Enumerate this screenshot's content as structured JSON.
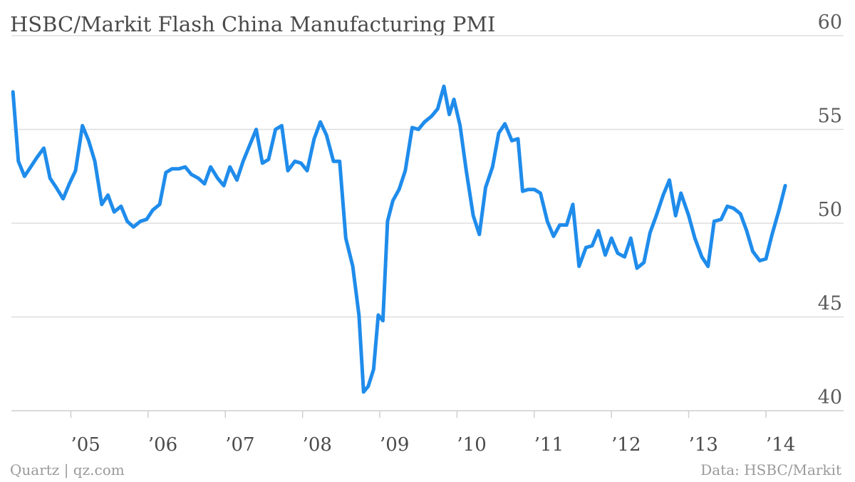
{
  "chart_data": {
    "type": "line",
    "title": "HSBC/Markit Flash China Manufacturing PMI",
    "xlabel": "",
    "ylabel": "",
    "ylim": [
      40,
      60
    ],
    "yticks": [
      40,
      45,
      50,
      55,
      60
    ],
    "xticks": [
      {
        "x": 2005,
        "label": "’05"
      },
      {
        "x": 2006,
        "label": "’06"
      },
      {
        "x": 2007,
        "label": "’07"
      },
      {
        "x": 2008,
        "label": "’08"
      },
      {
        "x": 2009,
        "label": "’09"
      },
      {
        "x": 2010,
        "label": "’10"
      },
      {
        "x": 2011,
        "label": "’11"
      },
      {
        "x": 2012,
        "label": "’12"
      },
      {
        "x": 2013,
        "label": "’13"
      },
      {
        "x": 2014,
        "label": "’14"
      }
    ],
    "xlim": [
      2004.23,
      2014.6
    ],
    "grid": true,
    "color": "#1f8ceb",
    "series": [
      {
        "points": [
          [
            2004.25,
            57.0
          ],
          [
            2004.32,
            53.3
          ],
          [
            2004.4,
            52.5
          ],
          [
            2004.48,
            53.0
          ],
          [
            2004.56,
            53.5
          ],
          [
            2004.65,
            54.0
          ],
          [
            2004.73,
            52.4
          ],
          [
            2004.81,
            51.9
          ],
          [
            2004.9,
            51.3
          ],
          [
            2004.98,
            52.1
          ],
          [
            2005.06,
            52.8
          ],
          [
            2005.15,
            55.2
          ],
          [
            2005.23,
            54.4
          ],
          [
            2005.31,
            53.3
          ],
          [
            2005.4,
            51.0
          ],
          [
            2005.48,
            51.5
          ],
          [
            2005.56,
            50.6
          ],
          [
            2005.65,
            50.9
          ],
          [
            2005.73,
            50.1
          ],
          [
            2005.81,
            49.8
          ],
          [
            2005.9,
            50.1
          ],
          [
            2005.98,
            50.2
          ],
          [
            2006.06,
            50.7
          ],
          [
            2006.15,
            51.0
          ],
          [
            2006.23,
            52.7
          ],
          [
            2006.31,
            52.9
          ],
          [
            2006.4,
            52.9
          ],
          [
            2006.48,
            53.0
          ],
          [
            2006.56,
            52.6
          ],
          [
            2006.65,
            52.4
          ],
          [
            2006.73,
            52.1
          ],
          [
            2006.81,
            53.0
          ],
          [
            2006.9,
            52.4
          ],
          [
            2006.98,
            52.0
          ],
          [
            2007.06,
            53.0
          ],
          [
            2007.15,
            52.3
          ],
          [
            2007.23,
            53.3
          ],
          [
            2007.31,
            54.1
          ],
          [
            2007.4,
            55.0
          ],
          [
            2007.48,
            53.2
          ],
          [
            2007.56,
            53.4
          ],
          [
            2007.65,
            55.0
          ],
          [
            2007.73,
            55.2
          ],
          [
            2007.81,
            52.8
          ],
          [
            2007.9,
            53.3
          ],
          [
            2007.98,
            53.2
          ],
          [
            2008.06,
            52.8
          ],
          [
            2008.15,
            54.5
          ],
          [
            2008.23,
            55.4
          ],
          [
            2008.31,
            54.7
          ],
          [
            2008.4,
            53.3
          ],
          [
            2008.48,
            53.3
          ],
          [
            2008.56,
            49.2
          ],
          [
            2008.65,
            47.7
          ],
          [
            2008.73,
            45.1
          ],
          [
            2008.79,
            41.0
          ],
          [
            2008.85,
            41.3
          ],
          [
            2008.92,
            42.2
          ],
          [
            2008.98,
            45.1
          ],
          [
            2009.04,
            44.8
          ],
          [
            2009.1,
            50.1
          ],
          [
            2009.17,
            51.2
          ],
          [
            2009.25,
            51.8
          ],
          [
            2009.33,
            52.8
          ],
          [
            2009.42,
            55.1
          ],
          [
            2009.5,
            55.0
          ],
          [
            2009.58,
            55.4
          ],
          [
            2009.67,
            55.7
          ],
          [
            2009.75,
            56.1
          ],
          [
            2009.83,
            57.3
          ],
          [
            2009.9,
            55.8
          ],
          [
            2009.96,
            56.6
          ],
          [
            2010.04,
            55.2
          ],
          [
            2010.12,
            52.8
          ],
          [
            2010.21,
            50.4
          ],
          [
            2010.29,
            49.4
          ],
          [
            2010.37,
            51.9
          ],
          [
            2010.46,
            53.0
          ],
          [
            2010.54,
            54.8
          ],
          [
            2010.62,
            55.3
          ],
          [
            2010.71,
            54.4
          ],
          [
            2010.79,
            54.5
          ],
          [
            2010.85,
            51.7
          ],
          [
            2010.92,
            51.8
          ],
          [
            2011.0,
            51.8
          ],
          [
            2011.08,
            51.6
          ],
          [
            2011.17,
            50.1
          ],
          [
            2011.25,
            49.3
          ],
          [
            2011.33,
            49.9
          ],
          [
            2011.42,
            49.9
          ],
          [
            2011.5,
            51.0
          ],
          [
            2011.58,
            47.7
          ],
          [
            2011.67,
            48.7
          ],
          [
            2011.75,
            48.8
          ],
          [
            2011.83,
            49.6
          ],
          [
            2011.92,
            48.3
          ],
          [
            2012.0,
            49.2
          ],
          [
            2012.08,
            48.4
          ],
          [
            2012.17,
            48.2
          ],
          [
            2012.25,
            49.2
          ],
          [
            2012.33,
            47.6
          ],
          [
            2012.42,
            47.9
          ],
          [
            2012.5,
            49.5
          ],
          [
            2012.58,
            50.4
          ],
          [
            2012.67,
            51.5
          ],
          [
            2012.75,
            52.3
          ],
          [
            2012.83,
            50.4
          ],
          [
            2012.9,
            51.6
          ],
          [
            2013.0,
            50.4
          ],
          [
            2013.08,
            49.2
          ],
          [
            2013.17,
            48.2
          ],
          [
            2013.25,
            47.7
          ],
          [
            2013.33,
            50.1
          ],
          [
            2013.42,
            50.2
          ],
          [
            2013.5,
            50.9
          ],
          [
            2013.58,
            50.8
          ],
          [
            2013.67,
            50.5
          ],
          [
            2013.75,
            49.6
          ],
          [
            2013.83,
            48.5
          ],
          [
            2013.92,
            48.0
          ],
          [
            2014.0,
            48.1
          ],
          [
            2014.08,
            49.4
          ],
          [
            2014.17,
            50.7
          ],
          [
            2014.25,
            52.0
          ]
        ]
      }
    ]
  },
  "footer": {
    "source_left": "Quartz | qz.com",
    "source_right": "Data: HSBC/Markit"
  }
}
